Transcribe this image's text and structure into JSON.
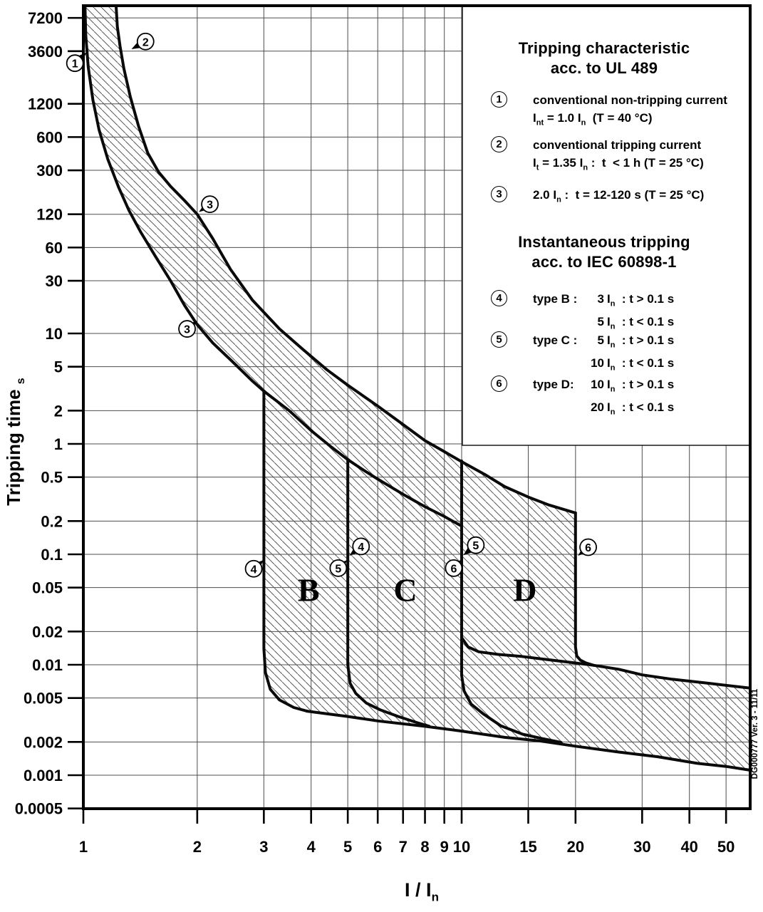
{
  "side_note": "DG000777 Ver. 3 - 11/11",
  "legend": {
    "ul_title": [
      "Tripping characteristic",
      "acc. to UL 489"
    ],
    "iec_title": [
      "Instantaneous tripping",
      "acc. to IEC 60898-1"
    ],
    "items": [
      {
        "num": "1",
        "text": "conventional non-tripping current",
        "formula": "I[nt] = 1.0 I[n]   (T = 40 °C)"
      },
      {
        "num": "2",
        "text": "conventional tripping current",
        "formula": "I[t] = 1.35 I[n] :  t  < 1 h (T = 25 °C)"
      },
      {
        "num": "3",
        "formula": "2.0 I[n] :  t = 12-120 s (T = 25 °C)"
      },
      {
        "num": "4",
        "label": "type B :",
        "rows": [
          [
            "3",
            "t > 0.1 s"
          ],
          [
            "5",
            "t < 0.1 s"
          ]
        ]
      },
      {
        "num": "5",
        "label": "type C :",
        "rows": [
          [
            "5",
            "t > 0.1 s"
          ],
          [
            "10",
            "t < 0.1 s"
          ]
        ]
      },
      {
        "num": "6",
        "label": "type D:",
        "rows": [
          [
            "10",
            "t > 0.1 s"
          ],
          [
            "20",
            "t < 0.1 s"
          ]
        ]
      }
    ]
  },
  "chart_data": {
    "type": "line",
    "title": "Tripping characteristic acc. to UL 489 / Instantaneous tripping acc. to IEC 60898-1",
    "xlabel": "I / I[n]",
    "ylabel": "Tripping time [s]",
    "x_log": true,
    "y_log": true,
    "grid": true,
    "x_ticks": [
      1,
      2,
      3,
      4,
      5,
      6,
      7,
      8,
      9,
      10,
      15,
      20,
      30,
      40,
      50
    ],
    "y_ticks": [
      7200,
      3600,
      1200,
      600,
      300,
      120,
      60,
      30,
      10,
      5,
      2,
      1,
      0.5,
      0.2,
      0.1,
      0.05,
      0.02,
      0.01,
      0.005,
      0.002,
      0.001,
      0.0005
    ],
    "x_range": [
      1,
      58
    ],
    "y_range": [
      0.0005,
      9300
    ],
    "series": [
      {
        "name": "thermal-upper-limit",
        "points": [
          [
            1.215,
            12000
          ],
          [
            1.23,
            6000
          ],
          [
            1.25,
            4000
          ],
          [
            1.28,
            2500
          ],
          [
            1.33,
            1400
          ],
          [
            1.4,
            750
          ],
          [
            1.48,
            430
          ],
          [
            1.58,
            290
          ],
          [
            1.7,
            215
          ],
          [
            1.85,
            160
          ],
          [
            2,
            120
          ],
          [
            2.2,
            72
          ],
          [
            2.45,
            38
          ],
          [
            2.8,
            20
          ],
          [
            3.3,
            11
          ],
          [
            3.8,
            7.2
          ],
          [
            4.4,
            4.7
          ],
          [
            5,
            3.4
          ],
          [
            6,
            2.2
          ],
          [
            7,
            1.5
          ],
          [
            8,
            1.07
          ],
          [
            9,
            0.85
          ],
          [
            10,
            0.69
          ],
          [
            11.5,
            0.53
          ],
          [
            13,
            0.41
          ],
          [
            15,
            0.33
          ],
          [
            17,
            0.28
          ],
          [
            20,
            0.237
          ]
        ]
      },
      {
        "name": "thermal-lower-limit",
        "points": [
          [
            1.008,
            12000
          ],
          [
            1.015,
            5000
          ],
          [
            1.03,
            2600
          ],
          [
            1.06,
            1300
          ],
          [
            1.1,
            700
          ],
          [
            1.16,
            380
          ],
          [
            1.24,
            210
          ],
          [
            1.32,
            130
          ],
          [
            1.42,
            82
          ],
          [
            1.55,
            50
          ],
          [
            1.7,
            30
          ],
          [
            1.85,
            18
          ],
          [
            2,
            12
          ],
          [
            2.2,
            8.2
          ],
          [
            2.5,
            5.4
          ],
          [
            2.8,
            3.7
          ],
          [
            3,
            3
          ],
          [
            3.5,
            2.0
          ],
          [
            4,
            1.32
          ],
          [
            4.5,
            0.95
          ],
          [
            5,
            0.72
          ],
          [
            5.5,
            0.58
          ],
          [
            6,
            0.48
          ],
          [
            7,
            0.35
          ],
          [
            8,
            0.27
          ],
          [
            9,
            0.22
          ],
          [
            10,
            0.18
          ]
        ]
      },
      {
        "name": "type-b-lower-drop-3In",
        "points": [
          [
            3,
            3
          ],
          [
            3,
            0.014
          ],
          [
            3.03,
            0.0085
          ],
          [
            3.12,
            0.006
          ],
          [
            3.3,
            0.0048
          ],
          [
            3.6,
            0.0041
          ],
          [
            3.9,
            0.0038
          ]
        ]
      },
      {
        "name": "instantaneous-bottom-limit",
        "points": [
          [
            3.9,
            0.0038
          ],
          [
            5,
            0.0034
          ],
          [
            6,
            0.0031
          ],
          [
            8,
            0.00277
          ],
          [
            10,
            0.00251
          ],
          [
            13,
            0.0022
          ],
          [
            16,
            0.00205
          ],
          [
            20,
            0.00183
          ],
          [
            26,
            0.00162
          ],
          [
            33,
            0.00147
          ],
          [
            42,
            0.00128
          ],
          [
            50,
            0.0012
          ],
          [
            59,
            0.0011
          ]
        ]
      },
      {
        "name": "drop-at-5In",
        "points": [
          [
            5,
            0.72
          ],
          [
            5,
            0.01
          ],
          [
            5.07,
            0.0068
          ],
          [
            5.25,
            0.0055
          ],
          [
            5.6,
            0.0045
          ],
          [
            6.1,
            0.0039
          ],
          [
            6.8,
            0.0034
          ],
          [
            7.6,
            0.003
          ],
          [
            8.2,
            0.00278
          ]
        ]
      },
      {
        "name": "drop-at-10In",
        "points": [
          [
            10,
            0.7
          ],
          [
            10,
            0.008
          ],
          [
            10.15,
            0.0058
          ],
          [
            10.6,
            0.0044
          ],
          [
            11.4,
            0.0036
          ],
          [
            12.7,
            0.0028
          ],
          [
            14.5,
            0.00235
          ],
          [
            16.5,
            0.00213
          ],
          [
            18.3,
            0.00198
          ]
        ]
      },
      {
        "name": "instantaneous-band-top",
        "points": [
          [
            10,
            0.0176
          ],
          [
            10.4,
            0.0145
          ],
          [
            11.1,
            0.0131
          ],
          [
            12.5,
            0.0124
          ],
          [
            14.4,
            0.0119
          ],
          [
            17,
            0.0111
          ],
          [
            19.9,
            0.0104
          ],
          [
            22.3,
            0.0099
          ],
          [
            26,
            0.0091
          ],
          [
            30,
            0.0081
          ],
          [
            36,
            0.0074
          ],
          [
            45,
            0.0068
          ],
          [
            59,
            0.0061
          ]
        ]
      },
      {
        "name": "type-d-upper-drop-20In",
        "points": [
          [
            20,
            0.237
          ],
          [
            20,
            0.0145
          ],
          [
            20.15,
            0.012
          ],
          [
            20.6,
            0.011
          ],
          [
            21.3,
            0.0104
          ],
          [
            22.3,
            0.0099
          ]
        ]
      }
    ],
    "region_labels": [
      {
        "text": "B",
        "x": 3.94,
        "t": 0.048
      },
      {
        "text": "C",
        "x": 7.1,
        "t": 0.048
      },
      {
        "text": "D",
        "x": 14.7,
        "t": 0.048
      }
    ],
    "annotations": [
      {
        "label": "1",
        "x": 0.95,
        "t": 2800,
        "tx": 1.02,
        "tt": 3500
      },
      {
        "label": "2",
        "x": 1.46,
        "t": 4400,
        "tx": 1.34,
        "tt": 3750
      },
      {
        "label": "3",
        "x": 2.16,
        "t": 148,
        "tx": 2.02,
        "tt": 126
      },
      {
        "label": "3",
        "x": 1.88,
        "t": 11,
        "tx": 2.0,
        "tt": 13
      },
      {
        "label": "4",
        "x": 2.82,
        "t": 0.074,
        "tx": 3.0,
        "tt": 0.089
      },
      {
        "label": "4",
        "x": 5.42,
        "t": 0.118,
        "tx": 5.05,
        "tt": 0.097
      },
      {
        "label": "5",
        "x": 4.72,
        "t": 0.075,
        "tx": 4.99,
        "tt": 0.089
      },
      {
        "label": "5",
        "x": 10.9,
        "t": 0.121,
        "tx": 10.1,
        "tt": 0.098
      },
      {
        "label": "6",
        "x": 9.53,
        "t": 0.075,
        "tx": 9.95,
        "tt": 0.089
      },
      {
        "label": "6",
        "x": 21.6,
        "t": 0.116,
        "tx": 20.3,
        "tt": 0.097
      }
    ],
    "colors": {
      "line": "#0a0a0a",
      "grid": "#4d4d4d",
      "hatch": "#5a5a5a",
      "background": "#ffffff"
    }
  }
}
